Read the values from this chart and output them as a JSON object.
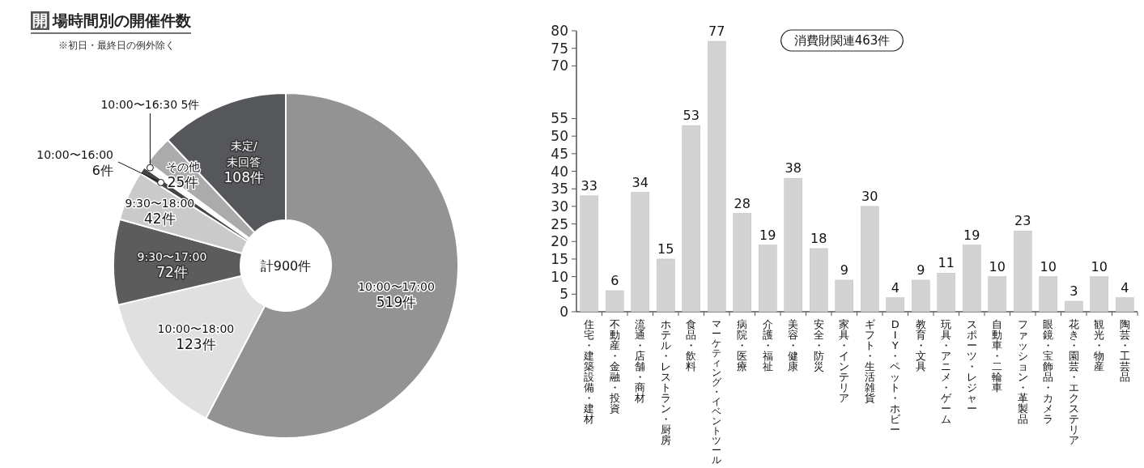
{
  "chart_data": [
    {
      "type": "donut",
      "title": "開場時間別の開催件数",
      "subtitle": "※初日・最終日の例外除く",
      "categories": [
        "10:00〜17:00",
        "10:00〜18:00",
        "9:30〜17:00",
        "9:30〜18:00",
        "10:00〜16:00",
        "10:00〜16:30",
        "その他",
        "未定/未回答"
      ],
      "values": [
        519,
        123,
        72,
        42,
        6,
        5,
        25,
        108
      ],
      "value_labels": [
        "519件",
        "123件",
        "72件",
        "42件",
        "6件",
        "5件",
        "25件",
        "108件"
      ],
      "colors": [
        "#939393",
        "#e0e0e0",
        "#5c5c5c",
        "#cacaca",
        "#454545",
        "#ffffff",
        "#ababab",
        "#56575a"
      ],
      "annotations": [
        "計900件"
      ]
    },
    {
      "type": "bar",
      "categories": [
        "住宅・建築設備・建材",
        "不動産・金融・投資",
        "流通・店舗・商材",
        "ホテル・レストラン・厨房",
        "食品・飲料",
        "マーケティング・イベントツール",
        "病院・医療",
        "介護・福祉",
        "美容・健康",
        "安全・防災",
        "家具・インテリア",
        "ギフト・生活雑貨",
        "DIY・ペット・ホビー",
        "教育・文具",
        "玩具・アニメ・ゲーム",
        "スポーツ・レジャー",
        "自動車・二輪車",
        "ファッション・革製品",
        "眼鏡・宝飾品・カメラ",
        "花き・園芸・エクステリア",
        "観光・物産",
        "陶芸・工芸品"
      ],
      "values": [
        33,
        6,
        34,
        15,
        53,
        77,
        28,
        19,
        38,
        18,
        9,
        30,
        4,
        9,
        11,
        19,
        10,
        23,
        10,
        3,
        10,
        4
      ],
      "color": "#d3d3d3",
      "ylim": [
        0,
        80
      ],
      "yticks": [
        0,
        5,
        10,
        15,
        20,
        25,
        30,
        35,
        40,
        45,
        50,
        55,
        70,
        75,
        80
      ],
      "data_labels": true,
      "annotations": [
        "消費財関連463件"
      ]
    }
  ]
}
